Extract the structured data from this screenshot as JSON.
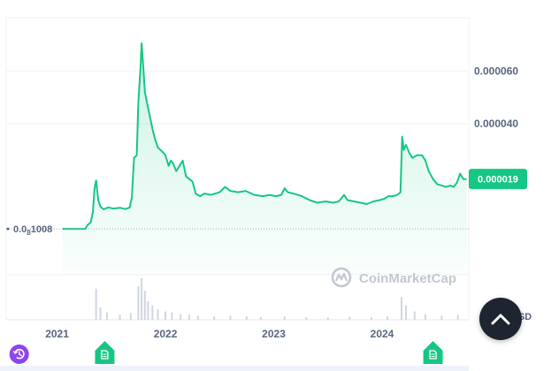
{
  "chart_data": {
    "type": "area",
    "currency": "USD",
    "current_price": "0.000019",
    "baseline_label": {
      "lead": "0.0",
      "subscript": "8",
      "tail": "1008"
    },
    "y_tick_labels": [
      "0.000060",
      "0.000040"
    ],
    "y_ticks": [
      6e-05,
      4e-05
    ],
    "ylim": [
      -1.73e-05,
      8.02e-05
    ],
    "x_tick_labels": [
      "2021",
      "2022",
      "2023",
      "2024"
    ],
    "x_tick_values": [
      2021.0,
      2022.0,
      2023.0,
      2024.0
    ],
    "xlim": [
      2020.53,
      2024.8
    ],
    "grid": true,
    "series": [
      {
        "points": [
          [
            2021.05,
            1e-07
          ],
          [
            2021.26,
            1e-07
          ],
          [
            2021.28,
            1.5e-06
          ],
          [
            2021.31,
            2.5e-06
          ],
          [
            2021.33,
            6.5e-06
          ],
          [
            2021.345,
            1.5e-05
          ],
          [
            2021.36,
            1.85e-05
          ],
          [
            2021.38,
            1.1e-05
          ],
          [
            2021.4,
            8.5e-06
          ],
          [
            2021.43,
            7.5e-06
          ],
          [
            2021.47,
            8.2e-06
          ],
          [
            2021.52,
            7.8e-06
          ],
          [
            2021.58,
            8.1e-06
          ],
          [
            2021.63,
            7.6e-06
          ],
          [
            2021.67,
            8.2e-06
          ],
          [
            2021.69,
            1.2e-05
          ],
          [
            2021.71,
            2.7e-05
          ],
          [
            2021.735,
            2.8e-05
          ],
          [
            2021.75,
            4.8e-05
          ],
          [
            2021.77,
            6.15e-05
          ],
          [
            2021.78,
            7.05e-05
          ],
          [
            2021.795,
            6.2e-05
          ],
          [
            2021.81,
            5.2e-05
          ],
          [
            2021.83,
            4.8e-05
          ],
          [
            2021.855,
            4.3e-05
          ],
          [
            2021.88,
            3.8e-05
          ],
          [
            2021.905,
            3.4e-05
          ],
          [
            2021.93,
            3.1e-05
          ],
          [
            2021.955,
            3e-05
          ],
          [
            2021.98,
            2.9e-05
          ],
          [
            2022.0,
            2.8e-05
          ],
          [
            2022.03,
            2.4e-05
          ],
          [
            2022.05,
            2.6e-05
          ],
          [
            2022.07,
            2.5e-05
          ],
          [
            2022.1,
            2.2e-05
          ],
          [
            2022.13,
            2.4e-05
          ],
          [
            2022.16,
            2.6e-05
          ],
          [
            2022.19,
            2e-05
          ],
          [
            2022.22,
            1.9e-05
          ],
          [
            2022.25,
            1.8e-05
          ],
          [
            2022.28,
            1.35e-05
          ],
          [
            2022.32,
            1.25e-05
          ],
          [
            2022.36,
            1.35e-05
          ],
          [
            2022.42,
            1.3e-05
          ],
          [
            2022.5,
            1.4e-05
          ],
          [
            2022.55,
            1.6e-05
          ],
          [
            2022.6,
            1.45e-05
          ],
          [
            2022.67,
            1.4e-05
          ],
          [
            2022.74,
            1.45e-05
          ],
          [
            2022.82,
            1.3e-05
          ],
          [
            2022.9,
            1.25e-05
          ],
          [
            2022.96,
            1.3e-05
          ],
          [
            2023.02,
            1.25e-05
          ],
          [
            2023.07,
            1.3e-05
          ],
          [
            2023.1,
            1.55e-05
          ],
          [
            2023.13,
            1.4e-05
          ],
          [
            2023.18,
            1.35e-05
          ],
          [
            2023.26,
            1.25e-05
          ],
          [
            2023.33,
            1.1e-05
          ],
          [
            2023.4,
            1e-05
          ],
          [
            2023.48,
            1.05e-05
          ],
          [
            2023.55,
            1e-05
          ],
          [
            2023.6,
            1.05e-05
          ],
          [
            2023.65,
            1.3e-05
          ],
          [
            2023.68,
            1.1e-05
          ],
          [
            2023.74,
            1.05e-05
          ],
          [
            2023.8,
            1e-05
          ],
          [
            2023.86,
            9.5e-06
          ],
          [
            2023.92,
            1.05e-05
          ],
          [
            2023.98,
            1.1e-05
          ],
          [
            2024.02,
            1.15e-05
          ],
          [
            2024.06,
            1.25e-05
          ],
          [
            2024.1,
            1.25e-05
          ],
          [
            2024.14,
            1.3e-05
          ],
          [
            2024.17,
            1.4e-05
          ],
          [
            2024.185,
            3.5e-05
          ],
          [
            2024.2,
            3e-05
          ],
          [
            2024.22,
            3.2e-05
          ],
          [
            2024.25,
            2.9e-05
          ],
          [
            2024.28,
            2.7e-05
          ],
          [
            2024.32,
            2.8e-05
          ],
          [
            2024.37,
            2.8e-05
          ],
          [
            2024.4,
            2.6e-05
          ],
          [
            2024.43,
            2.2e-05
          ],
          [
            2024.47,
            1.9e-05
          ],
          [
            2024.51,
            1.7e-05
          ],
          [
            2024.55,
            1.65e-05
          ],
          [
            2024.59,
            1.6e-05
          ],
          [
            2024.63,
            1.65e-05
          ],
          [
            2024.66,
            1.6e-05
          ],
          [
            2024.69,
            1.75e-05
          ],
          [
            2024.72,
            2.1e-05
          ],
          [
            2024.75,
            1.9e-05
          ],
          [
            2024.78,
            1.9e-05
          ]
        ]
      }
    ],
    "volume_bars": [
      [
        2021.36,
        0.75
      ],
      [
        2021.4,
        0.3
      ],
      [
        2021.46,
        0.18
      ],
      [
        2021.58,
        0.12
      ],
      [
        2021.68,
        0.16
      ],
      [
        2021.75,
        0.8
      ],
      [
        2021.78,
        1.0
      ],
      [
        2021.81,
        0.7
      ],
      [
        2021.84,
        0.45
      ],
      [
        2021.88,
        0.35
      ],
      [
        2021.93,
        0.25
      ],
      [
        2022.0,
        0.2
      ],
      [
        2022.06,
        0.18
      ],
      [
        2022.14,
        0.14
      ],
      [
        2022.22,
        0.12
      ],
      [
        2022.3,
        0.1
      ],
      [
        2022.45,
        0.08
      ],
      [
        2022.6,
        0.1
      ],
      [
        2022.75,
        0.08
      ],
      [
        2022.88,
        0.07
      ],
      [
        2023.1,
        0.08
      ],
      [
        2023.3,
        0.06
      ],
      [
        2023.5,
        0.06
      ],
      [
        2023.7,
        0.07
      ],
      [
        2023.9,
        0.06
      ],
      [
        2024.05,
        0.08
      ],
      [
        2024.18,
        0.55
      ],
      [
        2024.22,
        0.35
      ],
      [
        2024.3,
        0.2
      ],
      [
        2024.4,
        0.14
      ],
      [
        2024.55,
        0.1
      ],
      [
        2024.7,
        0.12
      ]
    ]
  },
  "watermark": {
    "text": "CoinMarketCap"
  },
  "markers": [
    {
      "name": "history-marker",
      "icon": "history-icon",
      "color": "#8e44ec",
      "x": 2020.65
    },
    {
      "name": "news-marker-1",
      "icon": "document-icon",
      "color": "#16c784",
      "x": 2021.44
    },
    {
      "name": "news-marker-2",
      "icon": "document-icon",
      "color": "#16c784",
      "x": 2024.47
    }
  ],
  "colors": {
    "line": "#16c784",
    "badge": "#16c784",
    "grid": "#eff2f5",
    "axis_text": "#58667e",
    "scroll_button": "#1f2530",
    "history_marker": "#8e44ec"
  },
  "scroll_button": {
    "icon": "chevron-up-icon"
  }
}
